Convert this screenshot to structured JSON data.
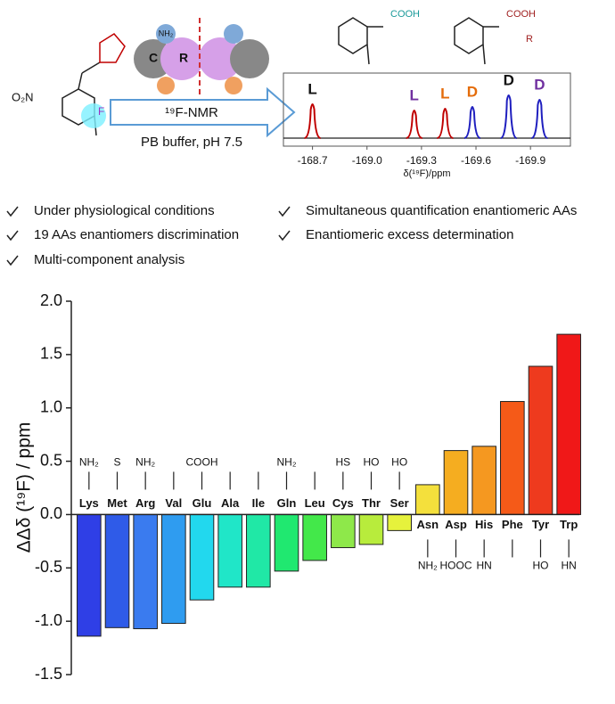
{
  "header": {
    "reagent_group": "O₂N",
    "fluorine": "F",
    "sphere_c": "C",
    "sphere_r": "R",
    "sphere_nh2": "NH₂",
    "arrow_text": "¹⁹F-NMR",
    "buffer": "PB buffer, pH 7.5",
    "product_acid_l": "COOH",
    "product_acid_d": "COOH",
    "product_r": "R"
  },
  "bullets": [
    "Under physiological conditions",
    "19 AAs enantiomers discrimination",
    "Multi-component analysis",
    "Simultaneous quantification enantiomeric AAs",
    "Enantiomeric excess determination"
  ],
  "chart_data": [
    {
      "type": "bar",
      "ylabel": "ΔΔδ (¹⁹F) / ppm",
      "categories": [
        "Lys",
        "Met",
        "Arg",
        "Val",
        "Glu",
        "Ala",
        "Ile",
        "Gln",
        "Leu",
        "Cys",
        "Thr",
        "Ser",
        "Asn",
        "Asp",
        "His",
        "Phe",
        "Tyr",
        "Trp"
      ],
      "values": [
        -1.14,
        -1.06,
        -1.07,
        -1.02,
        -0.8,
        -0.68,
        -0.68,
        -0.53,
        -0.43,
        -0.31,
        -0.28,
        -0.15,
        0.28,
        0.6,
        0.64,
        1.06,
        1.39,
        1.69
      ],
      "colors": [
        "#2f3fe6",
        "#2f5be8",
        "#3a7bef",
        "#2f9cf0",
        "#22d8ee",
        "#20e6c8",
        "#20e8a6",
        "#20e870",
        "#43e84a",
        "#8ee84a",
        "#b8ec3c",
        "#e6f23c",
        "#f4e03c",
        "#f5ad20",
        "#f59820",
        "#f55a18",
        "#ee3a1e",
        "#f01818"
      ],
      "side_chain_labels": [
        "NH₂",
        "S",
        "NH₂",
        null,
        "COOH",
        null,
        null,
        "NH₂",
        null,
        "HS",
        "HO",
        "HO",
        "NH₂",
        "HOOC",
        "HN",
        null,
        "HO",
        "HN"
      ],
      "ylim": [
        -1.5,
        2.0
      ],
      "yticks": [
        {
          "value": 2,
          "label": "2.0"
        },
        1.5,
        {
          "value": 1,
          "label": "1.0"
        },
        0.5,
        {
          "value": 0,
          "label": "0.0"
        },
        -0.5,
        {
          "value": -1,
          "label": "-1.0"
        },
        -1.5
      ]
    },
    {
      "type": "spectrum",
      "xlabel": "δ(¹⁹F)/ppm",
      "peaks": [
        -168.7,
        -169.26,
        -169.43,
        -169.58,
        -169.78,
        -169.95
      ],
      "heights": [
        40,
        33,
        35,
        37,
        50,
        45
      ],
      "peak_labels": [
        "L",
        "L",
        "L",
        "D",
        "D",
        "D"
      ],
      "label_colors": [
        "#111111",
        "#7030a0",
        "#e46c0a",
        "#e46c0a",
        "#111111",
        "#7030a0"
      ],
      "peak_colors": [
        "#c00000",
        "#c00000",
        "#c00000",
        "#1f1fbf",
        "#1f1fbf",
        "#1f1fbf"
      ],
      "xlim": [
        -168.54,
        -170.12
      ],
      "ylim": [
        0,
        55
      ],
      "xticks": [
        -168.7,
        {
          "value": -169,
          "label": "-169.0"
        },
        -169.3,
        -169.6,
        -169.9
      ]
    }
  ]
}
